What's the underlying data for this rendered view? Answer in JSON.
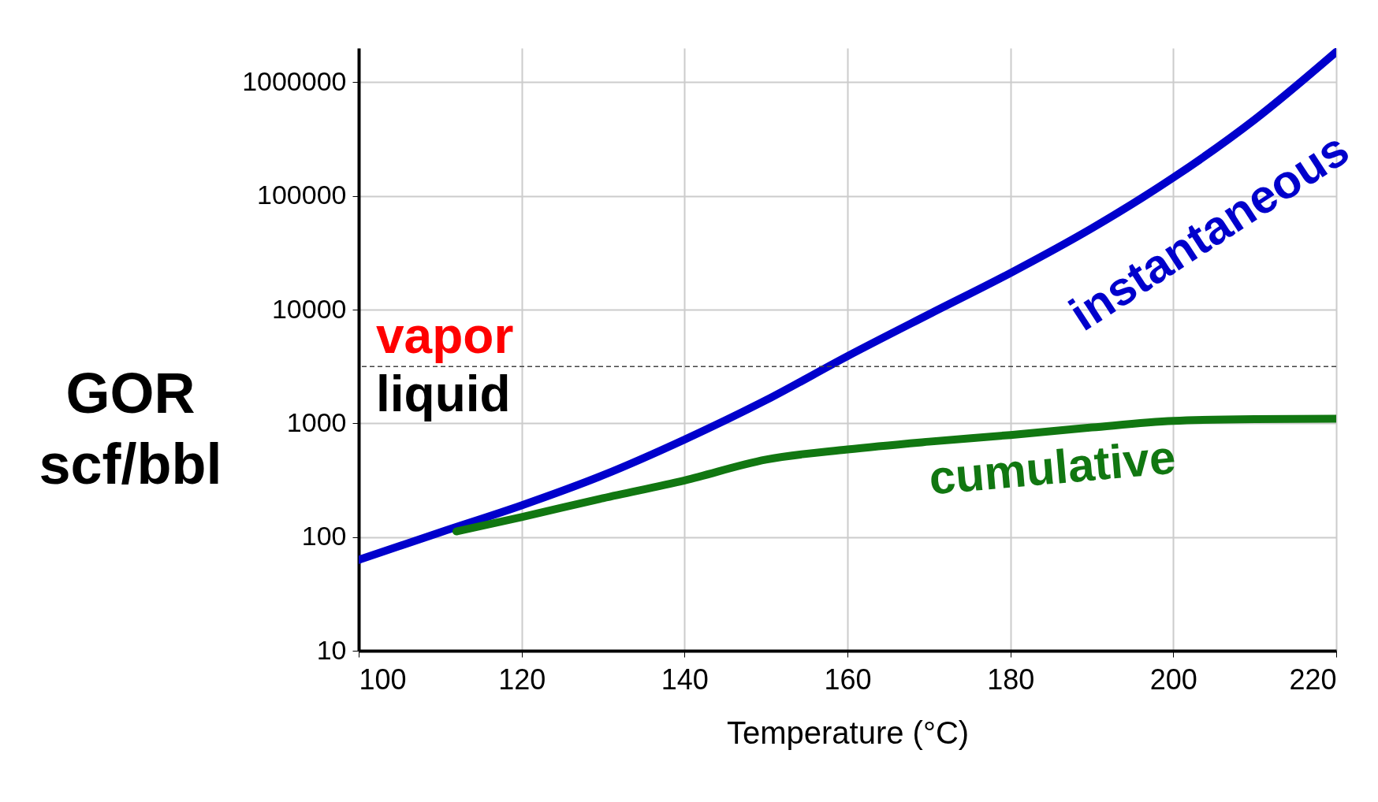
{
  "chart_data": {
    "type": "line",
    "xlabel": "Temperature (°C)",
    "ylabel": "GOR scf/bbl",
    "log": true,
    "grid": true,
    "xlim": [
      100,
      220
    ],
    "xticks": [
      100,
      120,
      140,
      160,
      180,
      200,
      220
    ],
    "ylim": [
      10,
      2000000
    ],
    "yticks": [
      10,
      100,
      1000,
      10000,
      100000,
      1000000
    ],
    "series": [
      {
        "name": "instantaneous",
        "color": "#0000cc",
        "x": [
          100,
          110,
          120,
          130,
          140,
          150,
          160,
          170,
          180,
          190,
          200,
          210,
          220
        ],
        "values": [
          63,
          110,
          190,
          350,
          720,
          1600,
          3900,
          9100,
          21000,
          52000,
          145000,
          470000,
          1850000
        ]
      },
      {
        "name": "cumulative",
        "color": "#117711",
        "x": [
          112,
          120,
          130,
          140,
          150,
          160,
          170,
          180,
          190,
          200,
          210,
          220
        ],
        "values": [
          112,
          150,
          220,
          315,
          480,
          590,
          690,
          790,
          920,
          1050,
          1090,
          1100
        ]
      }
    ],
    "ref_lines": [
      {
        "axis": "y",
        "value": 3160,
        "line_style": "dashed",
        "color": "#444444"
      }
    ],
    "annotations": [
      "vapor",
      "liquid"
    ]
  }
}
